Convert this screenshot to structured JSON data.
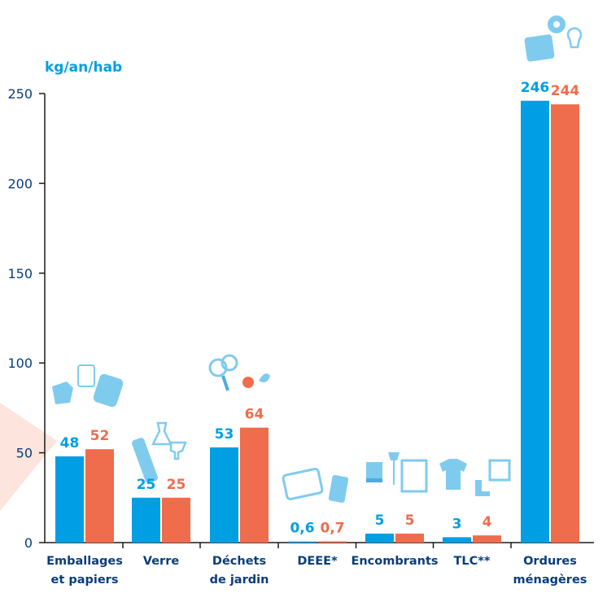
{
  "colors": {
    "series_a": "#009fe3",
    "series_b": "#ef6c4d",
    "axis_text": "#0a3d7a",
    "icon": "#7fcbee",
    "icon_dark": "#4aaede",
    "decor": "#fde4dc"
  },
  "chart_data": {
    "type": "bar",
    "ylabel": "kg/an/hab",
    "ylim": [
      0,
      250
    ],
    "yticks": [
      0,
      50,
      100,
      150,
      200,
      250
    ],
    "grid": false,
    "categories": [
      [
        "Emballages",
        "et papiers"
      ],
      [
        "Verre"
      ],
      [
        "Déchets",
        "de jardin"
      ],
      [
        "DEEE*"
      ],
      [
        "Encombrants"
      ],
      [
        "TLC**"
      ],
      [
        "Ordures",
        "ménagères"
      ]
    ],
    "series": [
      {
        "values": [
          48,
          25,
          53,
          0.6,
          5,
          3,
          246
        ],
        "labels": [
          "48",
          "25",
          "53",
          "0,6",
          "5",
          "3",
          "246"
        ]
      },
      {
        "values": [
          52,
          25,
          64,
          0.7,
          5,
          4,
          244
        ],
        "labels": [
          "52",
          "25",
          "64",
          "0,7",
          "5",
          "4",
          "244"
        ]
      }
    ],
    "category_icons": [
      "packaging-icons",
      "glass-bottles-icons",
      "garden-waste-icons",
      "electronics-icons",
      "furniture-icons",
      "clothing-icons",
      "household-waste-icons"
    ]
  }
}
